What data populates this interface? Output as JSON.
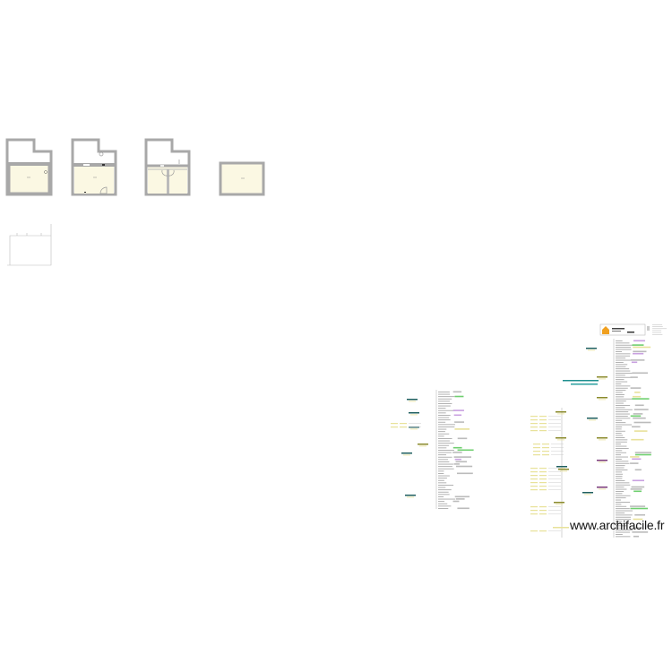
{
  "watermark": {
    "text": "www.archifacile.fr"
  },
  "colors": {
    "wall": "#a8a8a8",
    "floor": "#fbf8e3",
    "branch_dark": "#1f5f5f",
    "branch_olive": "#8a8a2a",
    "branch_purple": "#7a3a7a",
    "label_yellow": "#e8e29a",
    "label_green": "#6fcf6f",
    "label_violet": "#c9a0e0",
    "logo_orange": "#f0a020"
  },
  "icons": {
    "logo": "house-icon"
  },
  "plans": [
    {
      "name": "level-1"
    },
    {
      "name": "level-2"
    },
    {
      "name": "level-3"
    },
    {
      "name": "level-4"
    },
    {
      "name": "outline-sketch"
    }
  ]
}
